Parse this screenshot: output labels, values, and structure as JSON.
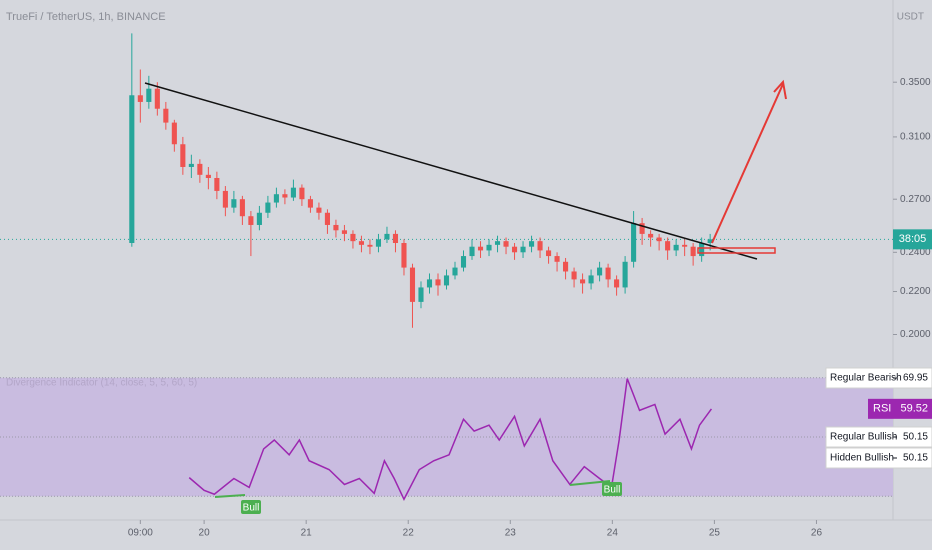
{
  "chart_data": [
    {
      "type": "candlestick",
      "title": "TrueFi / TetherUS, 1h, BINANCE",
      "y_axis_label": "USDT",
      "price_label": "38:05",
      "log_scale": true,
      "up_color": "#26a69a",
      "down_color": "#ef5350",
      "x": [
        7,
        9,
        11,
        13,
        15,
        17,
        19,
        21,
        23,
        25,
        27,
        29,
        31,
        33,
        35,
        37,
        39,
        41,
        43,
        45,
        47,
        49,
        51,
        53,
        55,
        57,
        59,
        61,
        63,
        65,
        67,
        69,
        71,
        73,
        75,
        77,
        79,
        81,
        83,
        85,
        87,
        89,
        91,
        93,
        95,
        97,
        99,
        101,
        103,
        105,
        107,
        109,
        111,
        113,
        115,
        117,
        119,
        121,
        123,
        125,
        127,
        129,
        131,
        133,
        135,
        137,
        139,
        141,
        143
      ],
      "open": [
        0.245,
        0.34,
        0.335,
        0.345,
        0.33,
        0.32,
        0.305,
        0.29,
        0.292,
        0.285,
        0.283,
        0.275,
        0.265,
        0.27,
        0.26,
        0.255,
        0.262,
        0.268,
        0.273,
        0.271,
        0.277,
        0.27,
        0.265,
        0.262,
        0.255,
        0.252,
        0.25,
        0.246,
        0.244,
        0.243,
        0.247,
        0.25,
        0.245,
        0.232,
        0.215,
        0.222,
        0.226,
        0.223,
        0.228,
        0.232,
        0.238,
        0.243,
        0.241,
        0.244,
        0.246,
        0.243,
        0.24,
        0.243,
        0.246,
        0.241,
        0.238,
        0.235,
        0.23,
        0.226,
        0.224,
        0.228,
        0.232,
        0.226,
        0.222,
        0.235,
        0.256,
        0.25,
        0.248,
        0.246,
        0.241,
        0.244,
        0.243,
        0.238,
        0.245
      ],
      "high": [
        0.39,
        0.36,
        0.355,
        0.35,
        0.335,
        0.322,
        0.31,
        0.298,
        0.295,
        0.29,
        0.287,
        0.278,
        0.275,
        0.272,
        0.263,
        0.266,
        0.272,
        0.277,
        0.276,
        0.282,
        0.279,
        0.272,
        0.268,
        0.264,
        0.258,
        0.255,
        0.252,
        0.249,
        0.247,
        0.25,
        0.254,
        0.252,
        0.247,
        0.234,
        0.225,
        0.229,
        0.229,
        0.231,
        0.235,
        0.241,
        0.247,
        0.246,
        0.247,
        0.249,
        0.248,
        0.245,
        0.246,
        0.249,
        0.248,
        0.243,
        0.24,
        0.237,
        0.232,
        0.229,
        0.231,
        0.235,
        0.234,
        0.228,
        0.238,
        0.263,
        0.259,
        0.252,
        0.25,
        0.248,
        0.247,
        0.247,
        0.245,
        0.248,
        0.25
      ],
      "low": [
        0.243,
        0.32,
        0.33,
        0.325,
        0.315,
        0.3,
        0.285,
        0.283,
        0.28,
        0.276,
        0.27,
        0.26,
        0.262,
        0.255,
        0.238,
        0.252,
        0.259,
        0.265,
        0.267,
        0.269,
        0.266,
        0.262,
        0.258,
        0.25,
        0.248,
        0.246,
        0.242,
        0.24,
        0.239,
        0.24,
        0.245,
        0.24,
        0.228,
        0.203,
        0.212,
        0.219,
        0.218,
        0.221,
        0.226,
        0.23,
        0.236,
        0.237,
        0.238,
        0.24,
        0.239,
        0.236,
        0.237,
        0.24,
        0.237,
        0.234,
        0.23,
        0.226,
        0.222,
        0.219,
        0.221,
        0.225,
        0.222,
        0.218,
        0.219,
        0.232,
        0.244,
        0.243,
        0.241,
        0.236,
        0.238,
        0.238,
        0.233,
        0.235,
        0.241
      ],
      "close": [
        0.34,
        0.335,
        0.345,
        0.33,
        0.32,
        0.305,
        0.29,
        0.292,
        0.285,
        0.283,
        0.275,
        0.265,
        0.27,
        0.26,
        0.255,
        0.262,
        0.268,
        0.273,
        0.271,
        0.277,
        0.27,
        0.265,
        0.262,
        0.255,
        0.252,
        0.25,
        0.246,
        0.244,
        0.243,
        0.247,
        0.25,
        0.245,
        0.232,
        0.215,
        0.222,
        0.226,
        0.223,
        0.228,
        0.232,
        0.238,
        0.243,
        0.241,
        0.244,
        0.246,
        0.243,
        0.24,
        0.243,
        0.246,
        0.241,
        0.238,
        0.235,
        0.23,
        0.226,
        0.224,
        0.228,
        0.232,
        0.226,
        0.222,
        0.235,
        0.256,
        0.25,
        0.248,
        0.246,
        0.241,
        0.244,
        0.243,
        0.238,
        0.245,
        0.247
      ],
      "xlim": [
        -24,
        186
      ],
      "ylim": [
        0.189,
        0.42
      ],
      "yticks": [
        {
          "value": 0.35,
          "label": "0.3500"
        },
        {
          "value": 0.31,
          "label": "0.3100"
        },
        {
          "value": 0.27,
          "label": "0.2700"
        },
        {
          "value": 0.24,
          "label": "0.2400"
        },
        {
          "value": 0.22,
          "label": "0.2200"
        },
        {
          "value": 0.2,
          "label": "0.2000"
        }
      ],
      "xticks": [
        {
          "value": 9,
          "label": "09:00"
        },
        {
          "value": 24,
          "label": "20"
        },
        {
          "value": 48,
          "label": "21"
        },
        {
          "value": 72,
          "label": "22"
        },
        {
          "value": 96,
          "label": "23"
        },
        {
          "value": 120,
          "label": "24"
        },
        {
          "value": 144,
          "label": "25"
        },
        {
          "value": 168,
          "label": "26"
        }
      ]
    },
    {
      "type": "line",
      "title": "Divergence Indicator (14, close, 5, 5, 60, 5)",
      "x": [
        20.5,
        24,
        26.4,
        31,
        34.6,
        38,
        40.5,
        44,
        46.4,
        48.7,
        53.4,
        57,
        60.5,
        64,
        66.4,
        68.7,
        71,
        74.6,
        78,
        81.6,
        85,
        87.5,
        91,
        93.4,
        97,
        99.3,
        103,
        106,
        110,
        113.4,
        117,
        119.8,
        121.6,
        123.5,
        126.4,
        130,
        132.4,
        135.9,
        138.6,
        140.5,
        143.3
      ],
      "series": [
        {
          "name": "RSI",
          "color": "#9c27b0",
          "values": [
            36.3,
            32,
            30.7,
            36,
            33,
            46,
            49,
            44,
            49,
            42,
            39,
            34,
            36,
            31,
            42,
            36,
            29,
            39,
            42,
            44,
            56,
            52,
            54,
            49,
            57,
            47,
            56,
            42,
            34,
            40,
            36,
            33,
            49,
            69.7,
            59,
            61,
            51,
            56,
            46,
            54,
            59.5
          ]
        }
      ],
      "current_value": 59.52,
      "band_color": "#c9bce0",
      "xlim": [
        -24,
        186
      ],
      "ylim": [
        22,
        76
      ],
      "yticks": [
        30,
        50,
        70
      ],
      "annotations": [
        "Bull",
        "Bull"
      ],
      "divergence_labels": [
        {
          "text": "Regular Bearish",
          "value": 69.95
        },
        {
          "text": "Regular Bullish",
          "value": 50.15
        },
        {
          "text": "Hidden Bullish",
          "value": 50.15
        }
      ]
    }
  ]
}
